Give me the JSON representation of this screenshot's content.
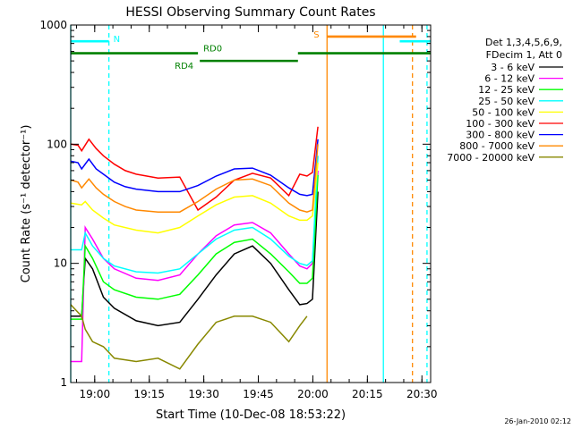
{
  "chart_data": {
    "type": "line",
    "title": "HESSI Observing Summary Count Rates",
    "xlabel": "Start Time (10-Dec-08 18:53:22)",
    "ylabel": "Count Rate (s⁻¹ detector⁻¹)",
    "x_unit": "minutes since 18:53:22",
    "xlim": [
      0,
      99
    ],
    "ylim": [
      1,
      1000
    ],
    "yscale": "log",
    "x_ticks": [
      {
        "x": 6.6,
        "label": "19:00"
      },
      {
        "x": 21.6,
        "label": "19:15"
      },
      {
        "x": 36.6,
        "label": "19:30"
      },
      {
        "x": 51.6,
        "label": "19:45"
      },
      {
        "x": 66.6,
        "label": "20:00"
      },
      {
        "x": 81.6,
        "label": "20:15"
      },
      {
        "x": 96.6,
        "label": "20:30"
      }
    ],
    "y_ticks": [
      {
        "y": 1,
        "label": "1"
      },
      {
        "y": 10,
        "label": "10"
      },
      {
        "y": 100,
        "label": "100"
      },
      {
        "y": 1000,
        "label": "1000"
      }
    ],
    "legend": {
      "header": [
        "Det 1,3,4,5,6,9,",
        "FDecim 1, Att 0"
      ],
      "position": "right"
    },
    "series": [
      {
        "name": "3 - 6 keV",
        "color": "#000000",
        "x": [
          0,
          3,
          4,
          6,
          9,
          12,
          18,
          24,
          30,
          35,
          40,
          45,
          50,
          55,
          60,
          63,
          65,
          66.5,
          68
        ],
        "y": [
          3.6,
          3.6,
          11,
          9,
          5.2,
          4.2,
          3.3,
          3.0,
          3.2,
          5,
          8,
          12,
          14,
          10,
          6,
          4.5,
          4.6,
          5,
          40
        ]
      },
      {
        "name": "6 - 12 keV",
        "color": "#ff00ff",
        "x": [
          0,
          3,
          4,
          6,
          9,
          12,
          18,
          24,
          30,
          35,
          40,
          45,
          50,
          55,
          60,
          63,
          65,
          66.5,
          68
        ],
        "y": [
          1.5,
          1.5,
          20,
          16,
          11,
          9,
          7.5,
          7.2,
          8,
          12,
          17,
          21,
          22,
          18,
          12,
          9.5,
          9,
          10,
          60
        ]
      },
      {
        "name": "12 - 25 keV",
        "color": "#00ff00",
        "x": [
          0,
          3,
          4,
          6,
          9,
          12,
          18,
          24,
          30,
          35,
          40,
          45,
          50,
          55,
          60,
          63,
          65,
          66.5,
          68
        ],
        "y": [
          3.4,
          3.4,
          14,
          11,
          7,
          6,
          5.2,
          5.0,
          5.5,
          8,
          12,
          15,
          16,
          12,
          8.5,
          6.8,
          6.8,
          7.5,
          55
        ]
      },
      {
        "name": "25 - 50 keV",
        "color": "#00ffff",
        "x": [
          0,
          3,
          4,
          6,
          9,
          12,
          18,
          24,
          30,
          35,
          40,
          45,
          50,
          55,
          60,
          63,
          65,
          66.5,
          68
        ],
        "y": [
          13,
          13,
          18,
          14,
          11,
          9.5,
          8.5,
          8.3,
          9,
          12,
          16,
          19,
          20,
          16,
          11.5,
          10,
          9.6,
          10.5,
          80
        ]
      },
      {
        "name": "50 - 100 keV",
        "color": "#ffff00",
        "x": [
          0,
          3,
          4,
          6,
          9,
          12,
          18,
          24,
          30,
          35,
          40,
          45,
          50,
          55,
          60,
          63,
          65,
          66.5,
          68
        ],
        "y": [
          32,
          31,
          33,
          28,
          24,
          21,
          19,
          18,
          20,
          25,
          31,
          36,
          37,
          32,
          25,
          23,
          23,
          25,
          70
        ]
      },
      {
        "name": "100 - 300 keV",
        "color": "#ff0000",
        "x": [
          0,
          2,
          3,
          5,
          7,
          9,
          12,
          15,
          18,
          24,
          30,
          35,
          40,
          45,
          50,
          55,
          60,
          63,
          65,
          66.5,
          68
        ],
        "y": [
          100,
          98,
          88,
          110,
          92,
          80,
          68,
          60,
          56,
          52,
          53,
          28,
          36,
          50,
          57,
          52,
          37,
          56,
          54,
          58,
          140
        ]
      },
      {
        "name": "300 - 800 keV",
        "color": "#0000ff",
        "x": [
          0,
          2,
          3,
          5,
          7,
          9,
          12,
          15,
          18,
          24,
          30,
          35,
          40,
          45,
          50,
          55,
          60,
          63,
          65,
          66.5,
          68
        ],
        "y": [
          72,
          70,
          62,
          75,
          62,
          56,
          48,
          44,
          42,
          40,
          40,
          45,
          54,
          62,
          63,
          55,
          43,
          38,
          37,
          38,
          110
        ]
      },
      {
        "name": "800 - 7000 keV",
        "color": "#ff8800",
        "x": [
          0,
          2,
          3,
          5,
          7,
          9,
          12,
          15,
          18,
          24,
          30,
          35,
          40,
          45,
          50,
          55,
          60,
          63,
          65,
          66.5,
          68
        ],
        "y": [
          50,
          48,
          43,
          51,
          43,
          38,
          33,
          30,
          28,
          27,
          27,
          33,
          42,
          50,
          51,
          45,
          32,
          28,
          27,
          28,
          100
        ]
      },
      {
        "name": "7000 - 20000 keV",
        "color": "#888800",
        "x": [
          0,
          3,
          4,
          6,
          9,
          12,
          18,
          24,
          30,
          35,
          40,
          45,
          50,
          55,
          60,
          63,
          65
        ],
        "y": [
          4.5,
          3.6,
          2.8,
          2.2,
          2.0,
          1.6,
          1.5,
          1.6,
          1.3,
          2.1,
          3.2,
          3.6,
          3.6,
          3.2,
          2.2,
          3.0,
          3.6
        ]
      }
    ],
    "state_bars": [
      {
        "label": "N",
        "color": "#00ffff",
        "x_start": 0,
        "x_end": 10.5,
        "y": 730
      },
      {
        "label": "S",
        "color": "#ff8800",
        "x_start": 70.5,
        "x_end": 95,
        "y": 800
      },
      {
        "label": "RD0",
        "color": "#008000",
        "x_start": 0,
        "x_end": 35,
        "y": 580
      },
      {
        "label": "RD0",
        "color": "#008000",
        "x_start": 62.5,
        "x_end": 99,
        "y": 580
      },
      {
        "label": "RD4",
        "color": "#008000",
        "x_start": 35.5,
        "x_end": 62.5,
        "y": 500
      },
      {
        "label": "",
        "color": "#00ffff",
        "x_start": 90.5,
        "x_end": 99,
        "y": 730
      }
    ],
    "vertical_markers": [
      {
        "x": 0,
        "color": "#00ffff",
        "style": "solid"
      },
      {
        "x": 10.5,
        "color": "#00ffff",
        "style": "dashed"
      },
      {
        "x": 70.5,
        "color": "#ff8800",
        "style": "solid"
      },
      {
        "x": 86,
        "color": "#00ffff",
        "style": "solid"
      },
      {
        "x": 94,
        "color": "#ff8800",
        "style": "dashed"
      },
      {
        "x": 98,
        "color": "#00ffff",
        "style": "dashed"
      }
    ]
  },
  "footer": {
    "timestamp": "26-Jan-2010 02:12"
  }
}
